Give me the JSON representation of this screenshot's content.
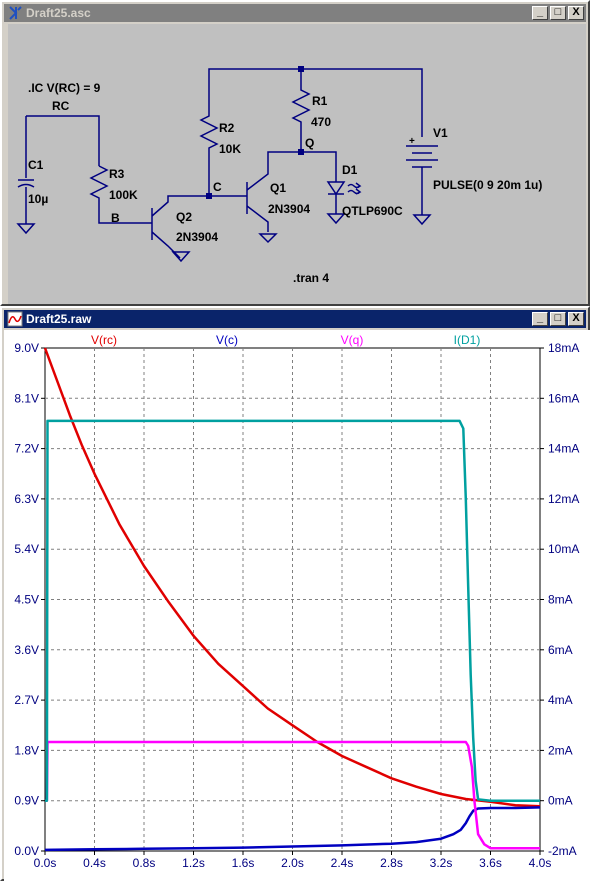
{
  "schematic_window": {
    "title": "Draft25.asc",
    "directives": {
      "ic": ".IC V(RC) = 9",
      "tran": ".tran 4"
    },
    "nets": {
      "rc": "RC",
      "b": "B",
      "c": "C",
      "q": "Q"
    },
    "components": {
      "c1": {
        "ref": "C1",
        "value": "10µ"
      },
      "r3": {
        "ref": "R3",
        "value": "100K"
      },
      "q2": {
        "ref": "Q2",
        "value": "2N3904"
      },
      "r2": {
        "ref": "R2",
        "value": "10K"
      },
      "q1": {
        "ref": "Q1",
        "value": "2N3904"
      },
      "r1": {
        "ref": "R1",
        "value": "470"
      },
      "d1": {
        "ref": "D1",
        "value": "QTLP690C"
      },
      "v1": {
        "ref": "V1",
        "value": "PULSE(0 9 20m 1u)",
        "plus": "+"
      }
    },
    "wire_color": "#000080"
  },
  "waveform_window": {
    "title": "Draft25.raw",
    "icon": "waveform-icon"
  },
  "window_buttons": {
    "minimize": "_",
    "maximize": "□",
    "close": "X"
  },
  "chart_data": {
    "type": "line",
    "title": "",
    "xlabel": "",
    "ylabel": "",
    "x_ticks": [
      "0.0s",
      "0.4s",
      "0.8s",
      "1.2s",
      "1.6s",
      "2.0s",
      "2.4s",
      "2.8s",
      "3.2s",
      "3.6s",
      "4.0s"
    ],
    "y_left_ticks": [
      "0.0V",
      "0.9V",
      "1.8V",
      "2.7V",
      "3.6V",
      "4.5V",
      "5.4V",
      "6.3V",
      "7.2V",
      "8.1V",
      "9.0V"
    ],
    "y_right_ticks": [
      "-2mA",
      "0mA",
      "2mA",
      "4mA",
      "6mA",
      "8mA",
      "10mA",
      "12mA",
      "14mA",
      "16mA",
      "18mA"
    ],
    "xlim": [
      0,
      4
    ],
    "ylim_left": [
      0,
      9
    ],
    "ylim_right": [
      -2,
      18
    ],
    "grid": true,
    "legend_placement": "top",
    "series": [
      {
        "name": "V(rc)",
        "axis": "left",
        "color": "#e00000",
        "x": [
          0,
          0.1,
          0.2,
          0.3,
          0.4,
          0.5,
          0.6,
          0.8,
          1.0,
          1.2,
          1.4,
          1.6,
          1.8,
          2.0,
          2.2,
          2.4,
          2.6,
          2.8,
          3.0,
          3.2,
          3.4,
          3.6,
          3.8,
          4.0
        ],
        "y": [
          9.0,
          8.4,
          7.8,
          7.25,
          6.75,
          6.3,
          5.85,
          5.1,
          4.45,
          3.85,
          3.35,
          2.95,
          2.55,
          2.25,
          1.95,
          1.7,
          1.5,
          1.3,
          1.15,
          1.02,
          0.93,
          0.88,
          0.82,
          0.8
        ]
      },
      {
        "name": "V(c)",
        "axis": "left",
        "color": "#0000c0",
        "x": [
          0,
          0.4,
          0.8,
          1.2,
          1.6,
          2.0,
          2.4,
          2.8,
          3.0,
          3.2,
          3.3,
          3.36,
          3.4,
          3.43,
          3.46,
          3.5,
          3.6,
          3.8,
          4.0
        ],
        "y": [
          0.02,
          0.03,
          0.04,
          0.05,
          0.06,
          0.08,
          0.1,
          0.13,
          0.16,
          0.22,
          0.3,
          0.38,
          0.5,
          0.62,
          0.72,
          0.76,
          0.77,
          0.77,
          0.78
        ]
      },
      {
        "name": "V(q)",
        "axis": "left",
        "color": "#ff00ff",
        "x": [
          0,
          0.015,
          0.02,
          0.5,
          1.0,
          1.5,
          2.0,
          2.5,
          3.0,
          3.4,
          3.42,
          3.45,
          3.47,
          3.5,
          3.55,
          3.6,
          4.0
        ],
        "y": [
          0.9,
          0.9,
          1.95,
          1.95,
          1.95,
          1.95,
          1.95,
          1.95,
          1.95,
          1.95,
          1.88,
          1.5,
          0.9,
          0.3,
          0.12,
          0.05,
          0.05
        ]
      },
      {
        "name": "I(D1)",
        "axis": "right",
        "color": "#00a0a0",
        "x": [
          0,
          0.015,
          0.02,
          0.5,
          1.0,
          1.5,
          2.0,
          2.5,
          3.0,
          3.35,
          3.38,
          3.4,
          3.42,
          3.44,
          3.46,
          3.48,
          3.5,
          3.6,
          4.0
        ],
        "y": [
          0,
          0,
          15.1,
          15.1,
          15.1,
          15.1,
          15.1,
          15.1,
          15.1,
          15.1,
          14.8,
          12.0,
          8.5,
          5.0,
          2.5,
          0.8,
          0.05,
          0,
          0
        ]
      }
    ]
  }
}
